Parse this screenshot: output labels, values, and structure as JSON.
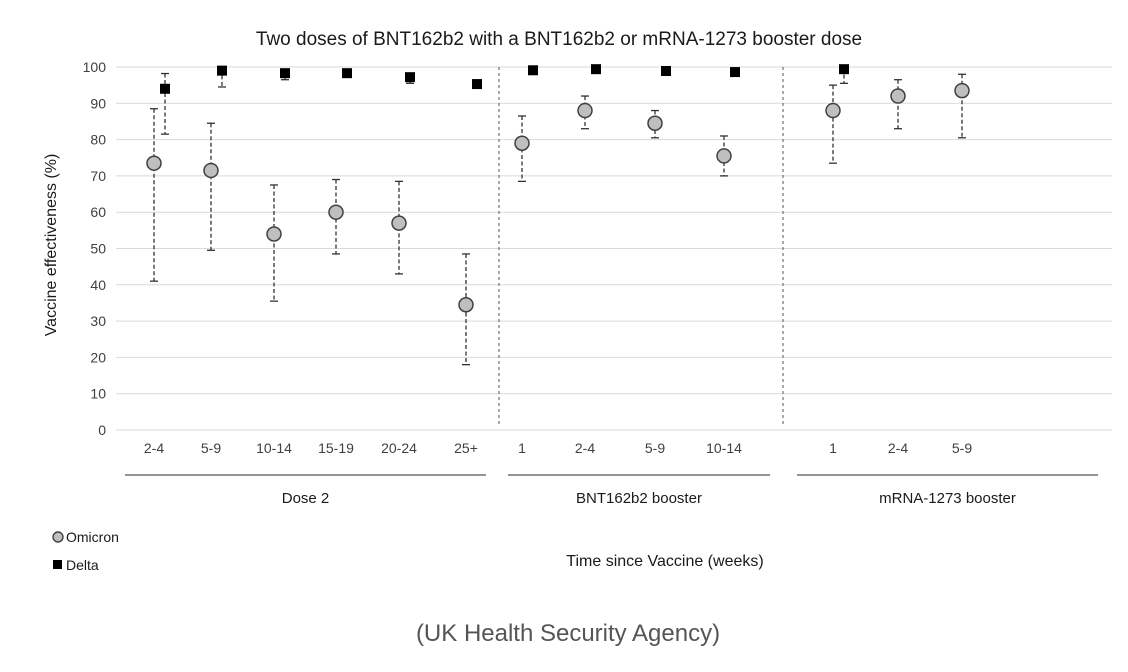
{
  "chart_data": {
    "type": "scatter",
    "title": "Two doses of BNT162b2 with a BNT162b2 or mRNA-1273 booster dose",
    "ylabel": "Vaccine effectiveness (%)",
    "xlabel": "Time since Vaccine (weeks)",
    "ylim": [
      0,
      100
    ],
    "yticks": [
      0,
      10,
      20,
      30,
      40,
      50,
      60,
      70,
      80,
      90,
      100
    ],
    "grid": true,
    "legend_position": "bottom-left",
    "groups": [
      {
        "label": "Dose 2",
        "categories": [
          "2-4",
          "5-9",
          "10-14",
          "15-19",
          "20-24",
          "25+"
        ]
      },
      {
        "label": "BNT162b2 booster",
        "categories": [
          "1",
          "2-4",
          "5-9",
          "10-14"
        ]
      },
      {
        "label": "mRNA-1273 booster",
        "categories": [
          "1",
          "2-4",
          "5-9"
        ]
      }
    ],
    "series": [
      {
        "name": "Omicron",
        "marker": "circle",
        "color": "#bfbfbf",
        "values": [
          73.5,
          71.5,
          54,
          60,
          57,
          34.5,
          79,
          88,
          84.5,
          75.5,
          88,
          92,
          93.5
        ],
        "lower": [
          41,
          49.5,
          35.5,
          48.5,
          43,
          18,
          68.5,
          83,
          80.5,
          70,
          73.5,
          83,
          80.5
        ],
        "upper": [
          88.5,
          84.5,
          67.5,
          69,
          68.5,
          48.5,
          86.5,
          92,
          88,
          81,
          95,
          96.5,
          98
        ]
      },
      {
        "name": "Delta",
        "marker": "square",
        "color": "#000000",
        "values": [
          94,
          99,
          98.3,
          98.3,
          97.2,
          95.3,
          99.1,
          99.4,
          98.9,
          98.6,
          99.4,
          null,
          null
        ],
        "lower": [
          81.5,
          94.5,
          96.5,
          97.5,
          95.5,
          94.5,
          98.5,
          98.8,
          98.3,
          98,
          95.5,
          null,
          null
        ],
        "upper": [
          98.2,
          99.5,
          99.1,
          98.8,
          98.2,
          96,
          99.5,
          99.7,
          99.3,
          99.1,
          99.7,
          null,
          null
        ]
      }
    ]
  },
  "source": "(UK Health Security Agency)",
  "colors": {
    "grid": "#d9d9d9",
    "omicron_fill": "#bfbfbf",
    "omicron_stroke": "#404040",
    "delta_fill": "#000000"
  }
}
